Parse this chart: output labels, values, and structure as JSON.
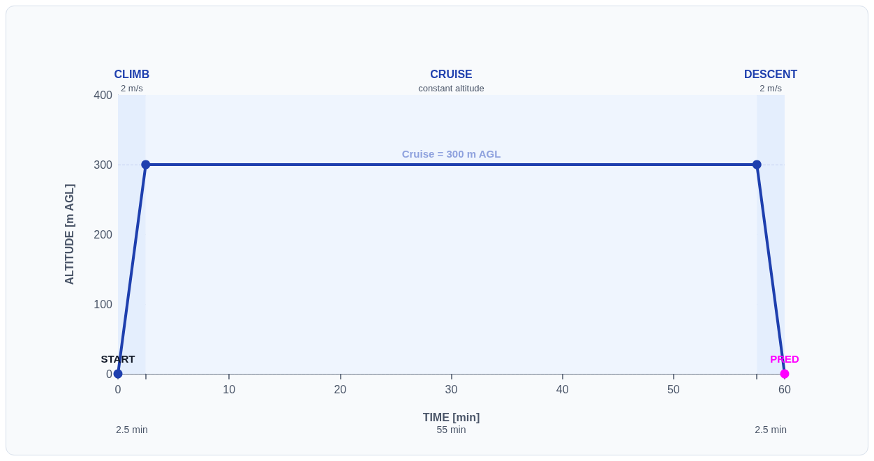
{
  "chart_data": {
    "type": "line",
    "xlabel": "TIME [min]",
    "ylabel": "ALTITUDE [m AGL]",
    "x": [
      0,
      2.5,
      57.5,
      60
    ],
    "series": [
      {
        "color": "#1e3fae",
        "colors": [
          "#1e3fae",
          "#1e3fae",
          "#1e3fae",
          "#ff00ff"
        ],
        "values": [
          0,
          300,
          300,
          0
        ]
      }
    ],
    "xlim": [
      0,
      60
    ],
    "ylim": [
      0,
      400
    ],
    "xticks": [
      0,
      {
        "value": 2.5,
        "label": null
      },
      10,
      20,
      30,
      40,
      50,
      {
        "value": 57.5,
        "label": null
      },
      60
    ],
    "yticks": [
      0,
      100,
      200,
      300,
      400
    ],
    "grid": "y",
    "marker": "circle",
    "line_style": "solid",
    "ref_lines": [
      {
        "axis": "y",
        "value": 300,
        "label": "Cruise = 300 m AGL",
        "color": "#c3cff0",
        "line_style": "dashed"
      }
    ],
    "bands": [
      {
        "axis": "x",
        "from": 0,
        "to": 2.5,
        "label": "CLIMB",
        "color": "#e4eefd"
      },
      {
        "axis": "x",
        "from": 2.5,
        "to": 57.5,
        "label": "CRUISE",
        "color": "#eff5fe"
      },
      {
        "axis": "x",
        "from": 57.5,
        "to": 60,
        "label": "DESCENT",
        "color": "#e4eefd"
      }
    ],
    "annotations": [
      {
        "text": "2 m/s",
        "x": 1.25,
        "y": 400
      },
      {
        "text": "constant altitude",
        "x": 30,
        "y": 400
      },
      {
        "text": "2 m/s",
        "x": 58.75,
        "y": 400
      },
      "2.5 min",
      "55 min",
      "2.5 min",
      {
        "text": "START",
        "x": 0,
        "y": 0
      },
      {
        "text": "PRED",
        "x": 60,
        "y": 0
      }
    ]
  }
}
